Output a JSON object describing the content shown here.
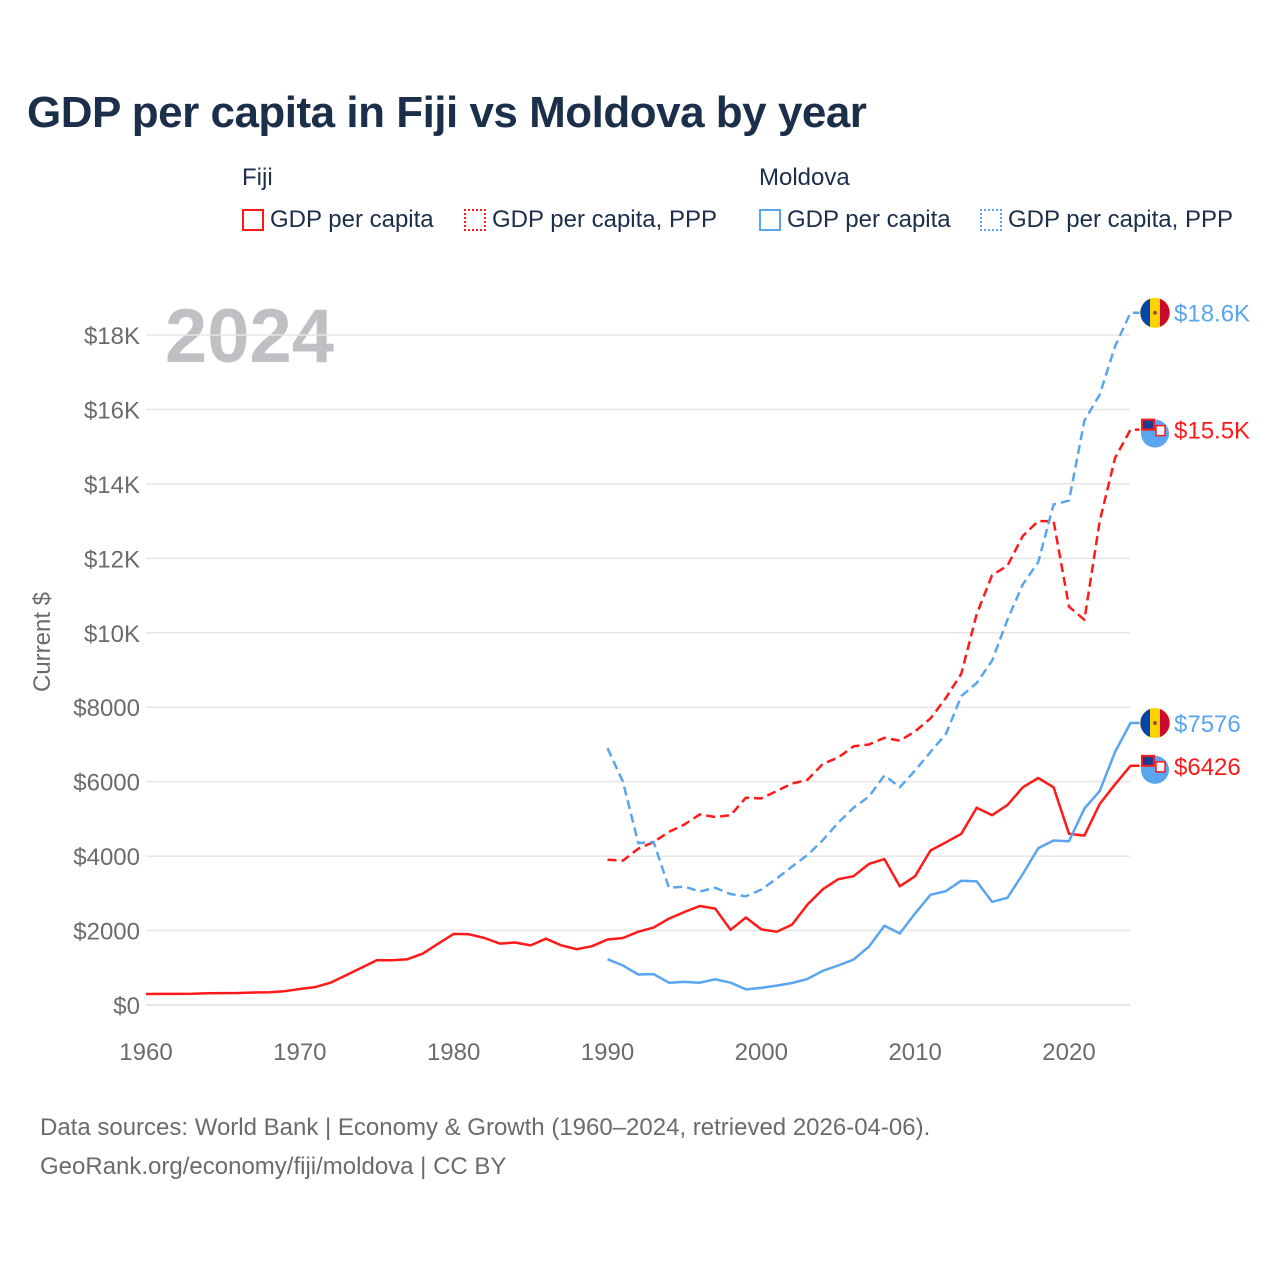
{
  "title": "GDP per capita in Fiji vs Moldova by year",
  "legend": {
    "groups": [
      {
        "name": "Fiji",
        "items": [
          "GDP per capita",
          "GDP per capita, PPP"
        ],
        "color": "#ff1a1a"
      },
      {
        "name": "Moldova",
        "items": [
          "GDP per capita",
          "GDP per capita, PPP"
        ],
        "color": "#5aa5ef"
      }
    ]
  },
  "source": {
    "line1": "Data sources: World Bank | Economy & Growth (1960–2024, retrieved 2026-04-06).",
    "line2": "GeoRank.org/economy/fiji/moldova | CC BY"
  },
  "chart_data": {
    "type": "line",
    "title": "GDP per capita in Fiji vs Moldova by year",
    "ylabel": "Current $",
    "xlabel": "",
    "year_watermark": "2024",
    "xlim": [
      1960,
      2024
    ],
    "ylim": [
      0,
      19000
    ],
    "x_ticks": [
      1960,
      1970,
      1980,
      1990,
      2000,
      2010,
      2020
    ],
    "x_tick_labels": [
      "1960",
      "1970",
      "1980",
      "1990",
      "2000",
      "2010",
      "2020"
    ],
    "y_ticks": [
      0,
      2000,
      4000,
      6000,
      8000,
      10000,
      12000,
      14000,
      16000,
      18000
    ],
    "y_tick_labels": [
      "$0",
      "$2000",
      "$4000",
      "$6000",
      "$8000",
      "$10K",
      "$12K",
      "$14K",
      "$16K",
      "$18K"
    ],
    "grid": true,
    "series": [
      {
        "name": "Fiji GDP per capita",
        "color": "#ff1a1a",
        "dash": false,
        "start": 1960,
        "end_label": "$6426",
        "values": [
          295,
          297,
          298,
          300,
          315,
          320,
          322,
          335,
          345,
          370,
          430,
          480,
          600,
          800,
          1000,
          1200,
          1200,
          1230,
          1380,
          1650,
          1910,
          1900,
          1800,
          1650,
          1680,
          1600,
          1780,
          1600,
          1500,
          1580,
          1760,
          1800,
          1970,
          2080,
          2320,
          2500,
          2660,
          2590,
          2020,
          2350,
          2030,
          1970,
          2160,
          2700,
          3110,
          3380,
          3460,
          3790,
          3920,
          3190,
          3460,
          4150,
          4370,
          4600,
          5300,
          5100,
          5370,
          5850,
          6100,
          5850,
          4600,
          4550,
          5400,
          5930,
          6426
        ]
      },
      {
        "name": "Fiji GDP per capita, PPP",
        "color": "#ff1a1a",
        "dash": true,
        "start": 1990,
        "end_label": "$15.5K",
        "values": [
          3900,
          3880,
          4200,
          4380,
          4650,
          4850,
          5120,
          5050,
          5100,
          5570,
          5550,
          5750,
          5950,
          6050,
          6480,
          6650,
          6950,
          7000,
          7180,
          7100,
          7350,
          7700,
          8250,
          8900,
          10500,
          11550,
          11800,
          12600,
          13000,
          13000,
          10700,
          10350,
          13000,
          14700,
          15460
        ]
      },
      {
        "name": "Moldova GDP per capita",
        "color": "#5aa5ef",
        "dash": false,
        "start": 1990,
        "end_label": "$7576",
        "values": [
          1230,
          1060,
          820,
          830,
          600,
          620,
          600,
          690,
          600,
          420,
          460,
          520,
          590,
          700,
          920,
          1060,
          1220,
          1570,
          2130,
          1920,
          2460,
          2960,
          3060,
          3340,
          3320,
          2770,
          2880,
          3520,
          4210,
          4420,
          4400,
          5280,
          5750,
          6800,
          7576
        ]
      },
      {
        "name": "Moldova GDP per capita, PPP",
        "color": "#5aa5ef",
        "dash": true,
        "start": 1990,
        "end_label": "$18.6K",
        "values": [
          6900,
          6000,
          4350,
          4380,
          3150,
          3180,
          3050,
          3150,
          2980,
          2920,
          3100,
          3400,
          3720,
          4030,
          4430,
          4900,
          5300,
          5600,
          6170,
          5850,
          6300,
          6800,
          7280,
          8300,
          8650,
          9250,
          10350,
          11300,
          11900,
          13450,
          13550,
          15700,
          16400,
          17700,
          18600
        ]
      }
    ]
  }
}
